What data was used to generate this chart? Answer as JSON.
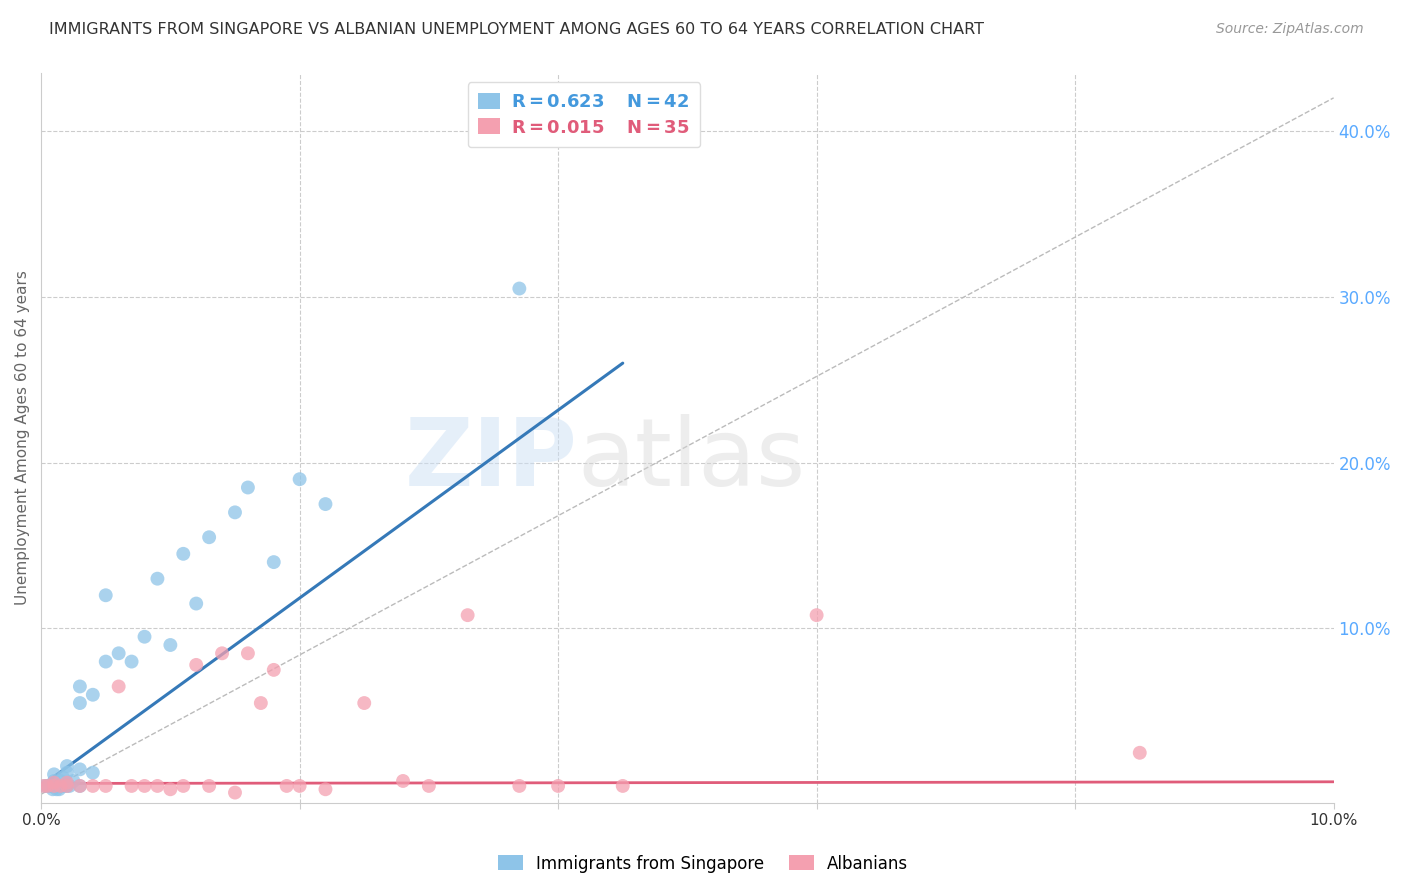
{
  "title": "IMMIGRANTS FROM SINGAPORE VS ALBANIAN UNEMPLOYMENT AMONG AGES 60 TO 64 YEARS CORRELATION CHART",
  "source": "Source: ZipAtlas.com",
  "ylabel": "Unemployment Among Ages 60 to 64 years",
  "xlim": [
    0.0,
    0.1
  ],
  "ylim": [
    -0.005,
    0.435
  ],
  "y_ticks_right": [
    0.1,
    0.2,
    0.3,
    0.4
  ],
  "y_tick_labels_right": [
    "10.0%",
    "20.0%",
    "30.0%",
    "40.0%"
  ],
  "singapore_color": "#8ec4e8",
  "albanian_color": "#f4a0b0",
  "singapore_line_color": "#3579b8",
  "albanian_line_color": "#e05c7a",
  "dashed_line_color": "#bbbbbb",
  "watermark_zip": "ZIP",
  "watermark_atlas": "atlas",
  "singapore_scatter_x": [
    0.0003,
    0.0005,
    0.0007,
    0.0008,
    0.0009,
    0.001,
    0.001,
    0.001,
    0.0012,
    0.0013,
    0.0014,
    0.0015,
    0.0016,
    0.0017,
    0.0018,
    0.002,
    0.002,
    0.002,
    0.0022,
    0.0025,
    0.003,
    0.003,
    0.003,
    0.003,
    0.004,
    0.004,
    0.005,
    0.005,
    0.006,
    0.007,
    0.008,
    0.009,
    0.01,
    0.011,
    0.012,
    0.013,
    0.015,
    0.016,
    0.018,
    0.02,
    0.022,
    0.037
  ],
  "singapore_scatter_y": [
    0.005,
    0.005,
    0.005,
    0.005,
    0.003,
    0.005,
    0.008,
    0.012,
    0.003,
    0.005,
    0.003,
    0.008,
    0.005,
    0.01,
    0.005,
    0.005,
    0.013,
    0.017,
    0.005,
    0.008,
    0.005,
    0.015,
    0.055,
    0.065,
    0.013,
    0.06,
    0.08,
    0.12,
    0.085,
    0.08,
    0.095,
    0.13,
    0.09,
    0.145,
    0.115,
    0.155,
    0.17,
    0.185,
    0.14,
    0.19,
    0.175,
    0.305
  ],
  "albanian_scatter_x": [
    0.0002,
    0.0005,
    0.001,
    0.001,
    0.0015,
    0.002,
    0.002,
    0.003,
    0.004,
    0.005,
    0.006,
    0.007,
    0.008,
    0.009,
    0.01,
    0.011,
    0.012,
    0.013,
    0.014,
    0.015,
    0.016,
    0.017,
    0.018,
    0.019,
    0.02,
    0.022,
    0.025,
    0.028,
    0.03,
    0.033,
    0.037,
    0.04,
    0.045,
    0.06,
    0.085
  ],
  "albanian_scatter_y": [
    0.005,
    0.005,
    0.005,
    0.007,
    0.005,
    0.005,
    0.007,
    0.005,
    0.005,
    0.005,
    0.065,
    0.005,
    0.005,
    0.005,
    0.003,
    0.005,
    0.078,
    0.005,
    0.085,
    0.001,
    0.085,
    0.055,
    0.075,
    0.005,
    0.005,
    0.003,
    0.055,
    0.008,
    0.005,
    0.108,
    0.005,
    0.005,
    0.005,
    0.108,
    0.025
  ],
  "singapore_line_x": [
    0.0,
    0.045
  ],
  "singapore_line_y": [
    0.005,
    0.26
  ],
  "albanian_line_x": [
    0.0,
    0.1
  ],
  "albanian_line_y": [
    0.0065,
    0.0075
  ],
  "dashed_line_x": [
    0.0,
    0.1
  ],
  "dashed_line_y": [
    0.0,
    0.42
  ],
  "grid_color": "#cccccc",
  "background_color": "#ffffff",
  "title_color": "#333333",
  "axis_label_color": "#666666",
  "right_tick_color": "#5aaaff",
  "bottom_tick_color": "#333333"
}
